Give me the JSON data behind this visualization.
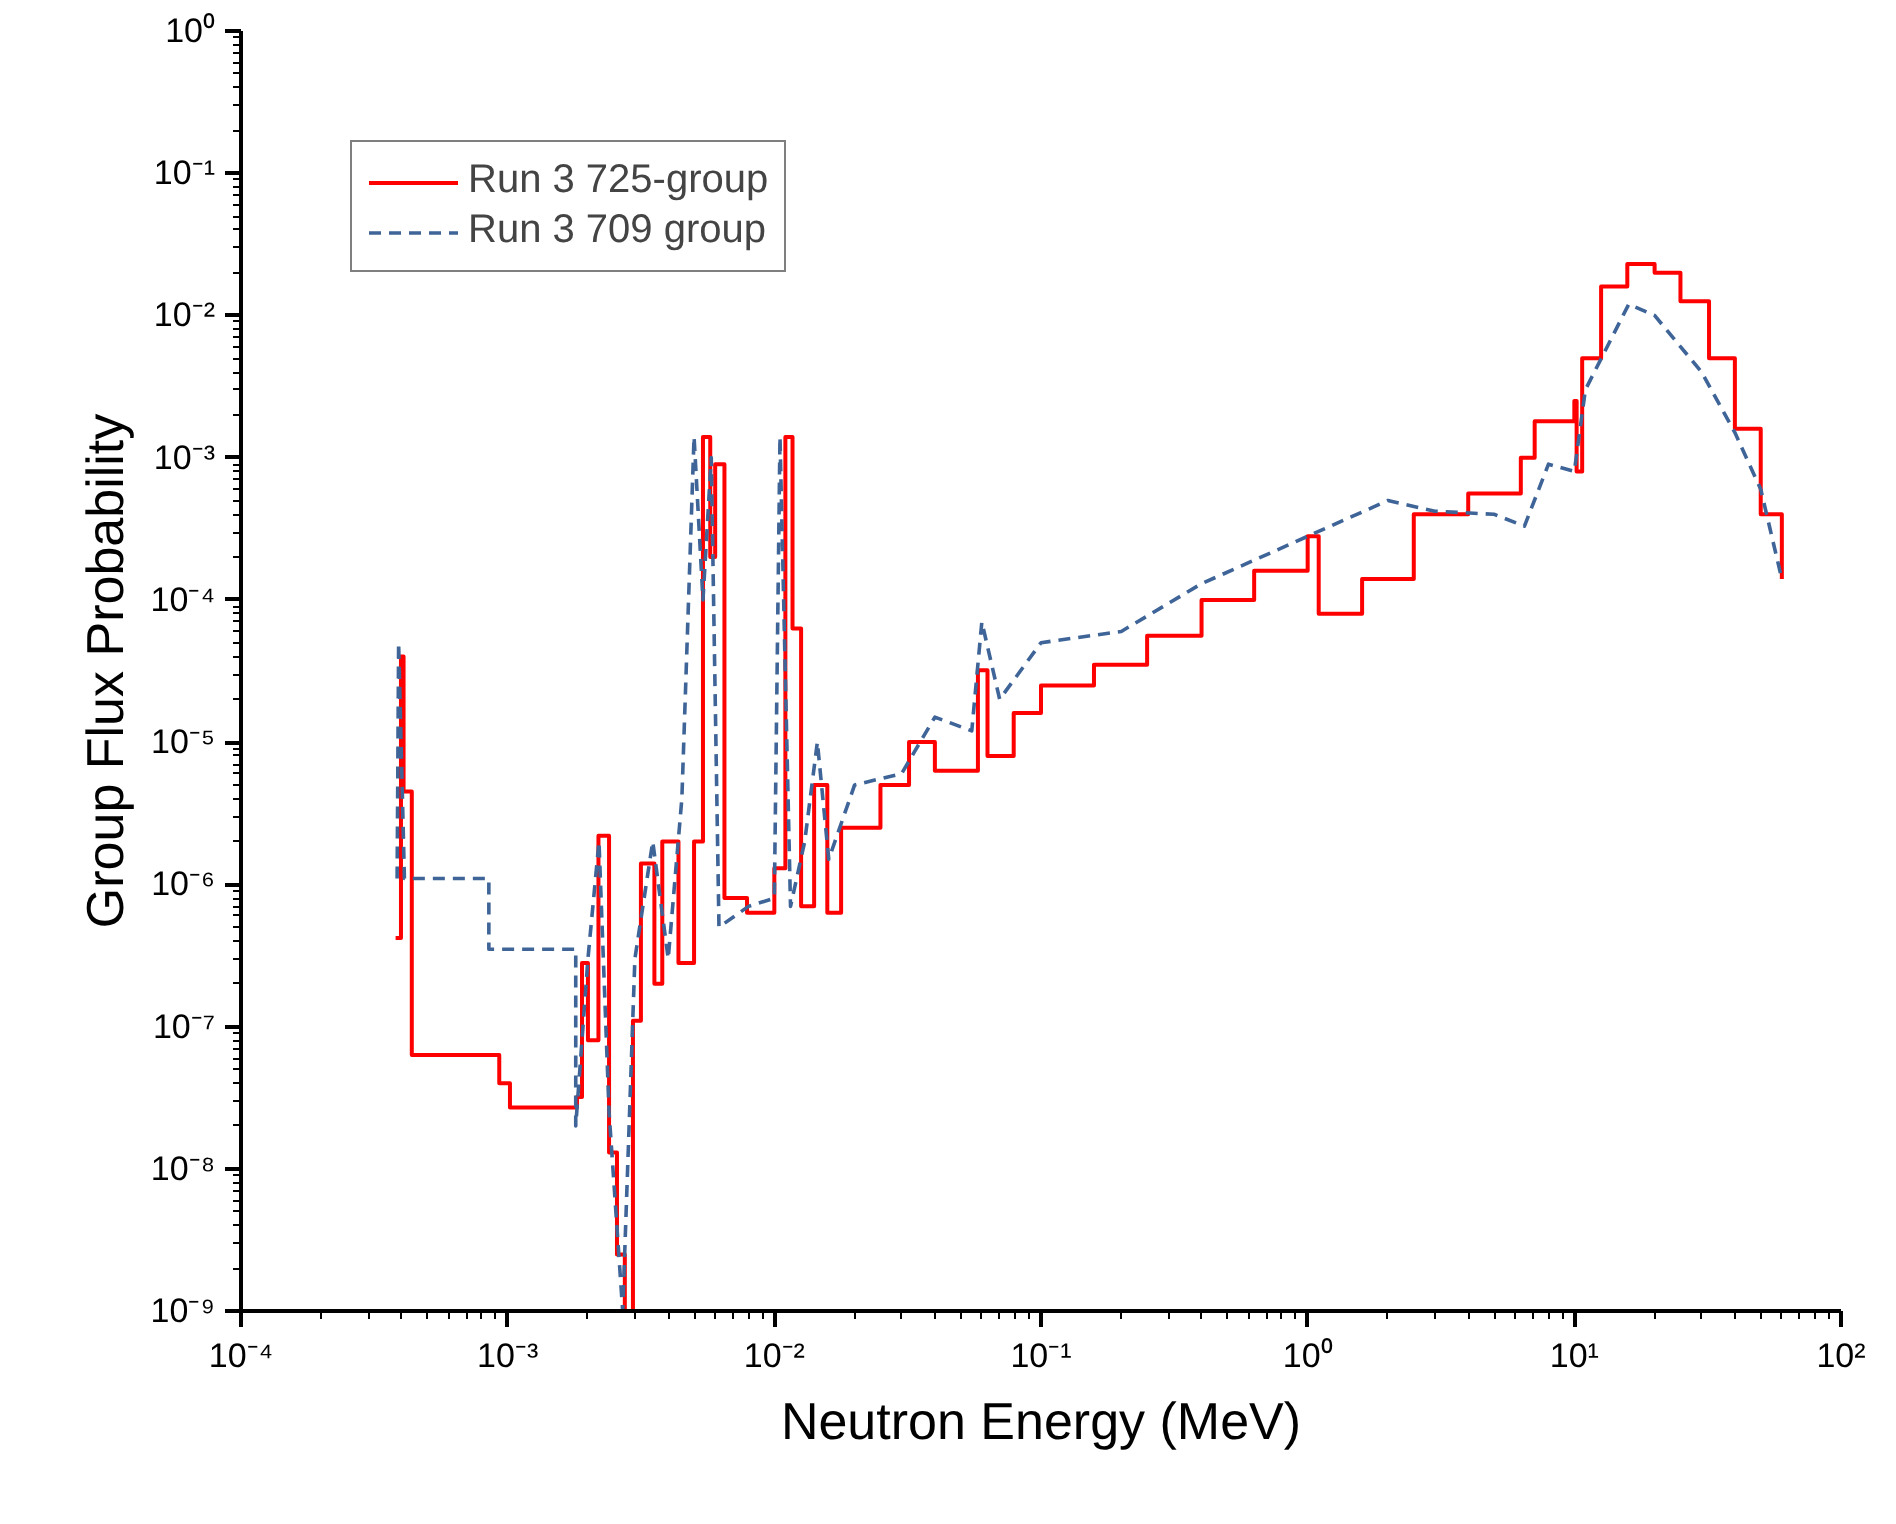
{
  "chart_data": {
    "type": "step",
    "xlabel": "Neutron Energy (MeV)",
    "ylabel": "Group Flux Probability",
    "log": "xy",
    "grid": false,
    "legend": "top left",
    "xlim": [
      0.0001,
      100
    ],
    "ylim": [
      1e-09,
      1
    ],
    "xticks": [
      {
        "value": 0.0001,
        "label": "10⁻⁴"
      },
      {
        "value": 0.001,
        "label": "10⁻³"
      },
      {
        "value": 0.01,
        "label": "10⁻²"
      },
      {
        "value": 0.1,
        "label": "10⁻¹"
      },
      {
        "value": 1,
        "label": "10⁰"
      },
      {
        "value": 10,
        "label": "10¹"
      },
      {
        "value": 100,
        "label": "10²"
      }
    ],
    "yticks": [
      {
        "value": 1e-09,
        "label": "10⁻⁹"
      },
      {
        "value": 1e-08,
        "label": "10⁻⁸"
      },
      {
        "value": 1e-07,
        "label": "10⁻⁷"
      },
      {
        "value": 1e-06,
        "label": "10⁻⁶"
      },
      {
        "value": 1e-05,
        "label": "10⁻⁵"
      },
      {
        "value": 0.0001,
        "label": "10⁻⁴"
      },
      {
        "value": 0.001,
        "label": "10⁻³"
      },
      {
        "value": 0.01,
        "label": "10⁻²"
      },
      {
        "value": 0.1,
        "label": "10⁻¹"
      },
      {
        "value": 1,
        "label": "10⁰"
      }
    ],
    "series": [
      {
        "name": "Run 3 725-group",
        "color": "#ff0000",
        "line_style": "solid",
        "x": [
          0.00038,
          0.000398,
          0.000407,
          0.000437,
          0.00093,
          0.00102,
          0.00182,
          0.0019,
          0.002,
          0.00219,
          0.0024,
          0.00257,
          0.00275,
          0.00295,
          0.00316,
          0.00355,
          0.0038,
          0.00437,
          0.005,
          0.0054,
          0.00575,
          0.006,
          0.0065,
          0.0079,
          0.01,
          0.011,
          0.0117,
          0.0126,
          0.0141,
          0.0158,
          0.0178,
          0.025,
          0.032,
          0.04,
          0.058,
          0.063,
          0.079,
          0.1,
          0.158,
          0.25,
          0.4,
          0.63,
          1.0,
          1.1,
          1.6,
          2.5,
          4.0,
          6.3,
          7.1,
          10,
          10.2,
          10.7,
          12.6,
          15.8,
          20,
          25,
          32,
          40,
          50,
          60
        ],
        "values": [
          4.2e-07,
          4e-05,
          4.5e-06,
          6.3e-08,
          4e-08,
          2.7e-08,
          3.2e-08,
          2.8e-07,
          8e-08,
          2.2e-06,
          1.3e-08,
          2.5e-09,
          1e-09,
          1.1e-07,
          1.4e-06,
          2e-07,
          2e-06,
          2.8e-07,
          2e-06,
          0.0014,
          0.0002,
          0.0009,
          8e-07,
          6.3e-07,
          1.3e-06,
          0.0014,
          6.3e-05,
          7e-07,
          5e-06,
          6.3e-07,
          2.5e-06,
          5e-06,
          1e-05,
          6.3e-06,
          3.2e-05,
          8e-06,
          1.6e-05,
          2.5e-05,
          3.5e-05,
          5.6e-05,
          0.0001,
          0.00016,
          0.00028,
          8e-05,
          0.00014,
          0.0004,
          0.00056,
          0.001,
          0.0018,
          0.0025,
          0.0008,
          0.005,
          0.016,
          0.023,
          0.02,
          0.0126,
          0.005,
          0.0016,
          0.0004,
          0.00014
        ]
      },
      {
        "name": "Run 3 709 group",
        "color": "#3e6498",
        "type": "line",
        "line_style": "dashed",
        "x": [
          0.000385,
          0.00039,
          0.00041,
          0.00085,
          0.00085,
          0.0018,
          0.0018,
          0.002,
          0.0022,
          0.0024,
          0.0027,
          0.003,
          0.0035,
          0.004,
          0.0045,
          0.005,
          0.0054,
          0.0058,
          0.0062,
          0.008,
          0.01,
          0.0105,
          0.0115,
          0.013,
          0.0145,
          0.016,
          0.02,
          0.03,
          0.04,
          0.055,
          0.06,
          0.07,
          0.1,
          0.2,
          0.4,
          1.0,
          2.0,
          3.0,
          5.0,
          6.5,
          8.0,
          10,
          11,
          16,
          20,
          30,
          40,
          50,
          60
        ],
        "values": [
          1.1e-06,
          5e-05,
          1.1e-06,
          1.1e-06,
          3.5e-07,
          3.5e-07,
          2e-08,
          3e-07,
          2e-06,
          2.5e-08,
          1e-09,
          3e-07,
          2e-06,
          3e-07,
          4e-06,
          0.0014,
          0.0001,
          0.001,
          5e-07,
          7e-07,
          8e-07,
          0.0014,
          7e-07,
          2e-06,
          1e-05,
          1.5e-06,
          5e-06,
          6e-06,
          1.5e-05,
          1.2e-05,
          7e-05,
          2e-05,
          5e-05,
          6e-05,
          0.00013,
          0.00028,
          0.0005,
          0.00042,
          0.0004,
          0.00033,
          0.0009,
          0.0008,
          0.003,
          0.012,
          0.01,
          0.004,
          0.0015,
          0.0006,
          0.00014
        ]
      }
    ]
  }
}
